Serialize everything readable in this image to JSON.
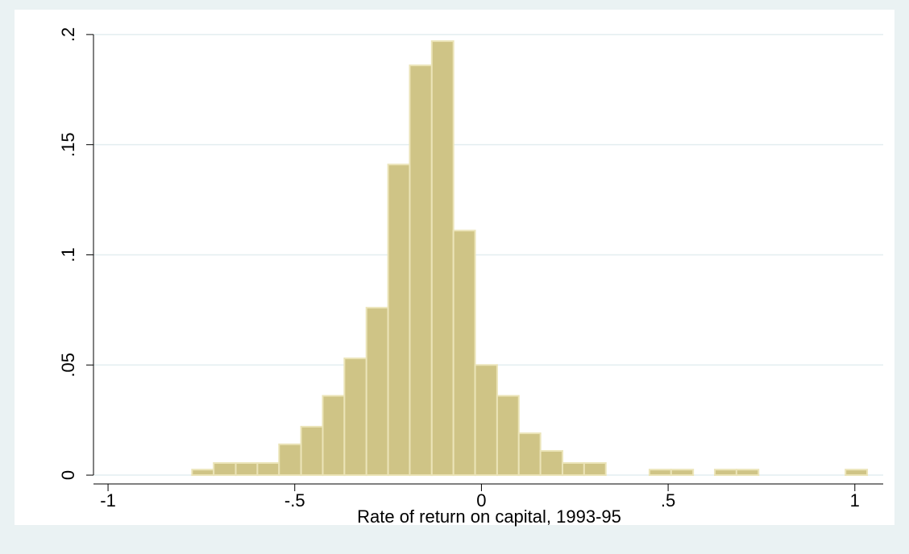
{
  "chart_data": {
    "type": "histogram",
    "x_label": "Rate of return on capital, 1993-95",
    "bins": [
      -0.775,
      -0.717,
      -0.658,
      -0.6,
      -0.542,
      -0.483,
      -0.425,
      -0.367,
      -0.308,
      -0.25,
      -0.192,
      -0.133,
      -0.075,
      -0.017,
      0.042,
      0.1,
      0.158,
      0.217,
      0.275,
      0.333,
      0.392,
      0.45,
      0.508,
      0.567,
      0.625,
      0.683,
      0.742,
      0.8,
      0.858,
      0.917,
      0.975,
      1.033
    ],
    "values": [
      0.0025,
      0.0055,
      0.0055,
      0.0055,
      0.014,
      0.022,
      0.036,
      0.053,
      0.076,
      0.141,
      0.186,
      0.197,
      0.111,
      0.05,
      0.036,
      0.019,
      0.011,
      0.0055,
      0.0055,
      0,
      0,
      0.0025,
      0.0025,
      0,
      0.0025,
      0.0025,
      0,
      0,
      0,
      0,
      0.0025
    ],
    "color": "#cfc486",
    "xlim": [
      -1.039,
      1.076
    ],
    "ylim": [
      -0.004,
      0.208
    ],
    "xticks": [
      -1,
      {
        "value": -0.5,
        "label": "-.5"
      },
      0,
      {
        "value": 0.5,
        "label": ".5"
      },
      1
    ],
    "yticks": [
      0,
      {
        "value": 0.05,
        "label": ".05"
      },
      {
        "value": 0.1,
        "label": ".1"
      },
      {
        "value": 0.15,
        "label": ".15"
      },
      {
        "value": 0.2,
        "label": ".2"
      }
    ],
    "grid": true
  }
}
